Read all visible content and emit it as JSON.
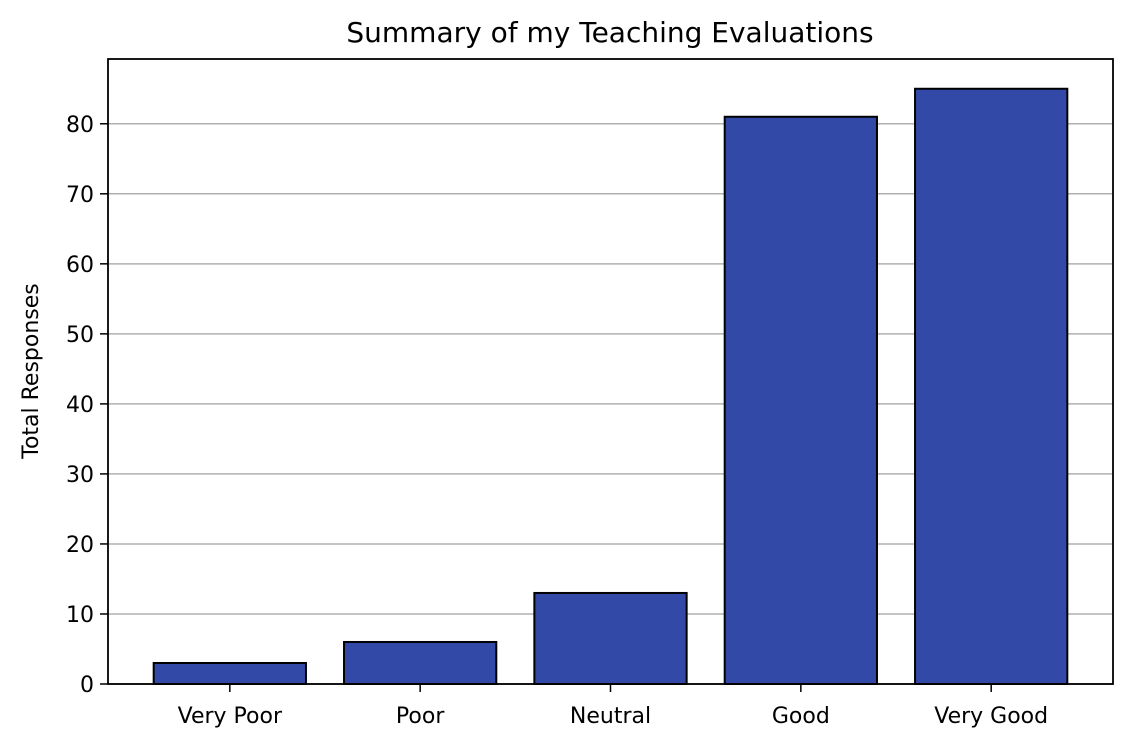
{
  "chart_data": {
    "type": "bar",
    "title": "Summary of my Teaching Evaluations",
    "xlabel": "",
    "ylabel": "Total Responses",
    "categories": [
      "Very Poor",
      "Poor",
      "Neutral",
      "Good",
      "Very Good"
    ],
    "values": [
      3,
      6,
      13,
      81,
      85
    ],
    "ylim": [
      0,
      89.25
    ],
    "yticks": [
      0,
      10,
      20,
      30,
      40,
      50,
      60,
      70,
      80
    ],
    "grid": "y-major",
    "legend": "none",
    "bar_color": "#3249a8",
    "bar_edge_color": "#000000",
    "grid_color": "#b0b0b0"
  }
}
